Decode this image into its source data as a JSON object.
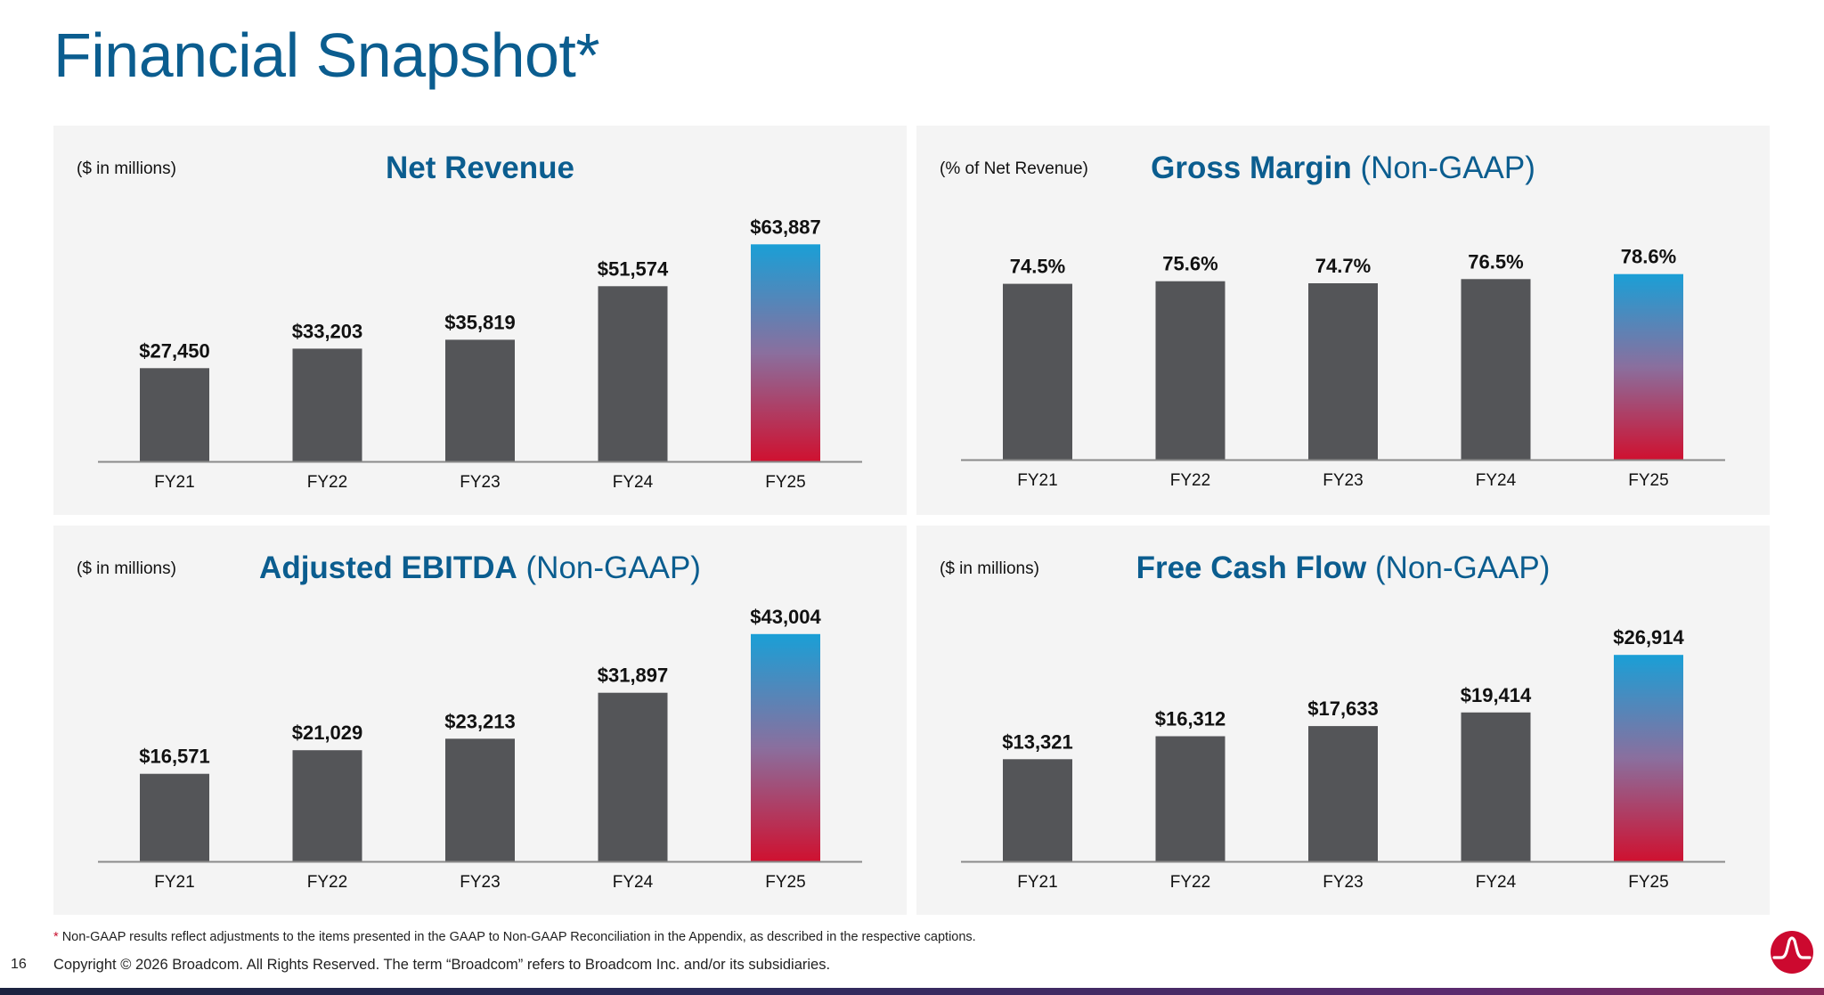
{
  "page": {
    "title": "Financial Snapshot*",
    "footnote_marker": "*",
    "footnote_text": "Non-GAAP results reflect adjustments to the items presented in the GAAP to Non-GAAP Reconciliation in the Appendix, as described in the respective captions.",
    "page_number": "16",
    "copyright": "Copyright © 2026 Broadcom. All Rights Reserved. The term “Broadcom” refers to Broadcom Inc. and/or its subsidiaries."
  },
  "colors": {
    "bar": "#545558",
    "highlight_top": "#1a9fd6",
    "highlight_mid": "#8a6f9e",
    "highlight_bottom": "#cf1130",
    "title": "#0b5d8f",
    "panel_bg": "#f4f4f4",
    "logo": "#cc092f"
  },
  "panels": [
    {
      "unit_note": "($ in millions)",
      "title_main": "Net Revenue",
      "title_sub": ""
    },
    {
      "unit_note": "(% of Net Revenue)",
      "title_main": "Gross Margin",
      "title_sub": "(Non-GAAP)"
    },
    {
      "unit_note": "($ in millions)",
      "title_main": "Adjusted EBITDA",
      "title_sub": "(Non-GAAP)"
    },
    {
      "unit_note": "($ in millions)",
      "title_main": "Free Cash Flow",
      "title_sub": "(Non-GAAP)"
    }
  ],
  "chart_data": [
    {
      "type": "bar",
      "title": "Net Revenue",
      "ylabel": "($ in millions)",
      "categories": [
        "FY21",
        "FY22",
        "FY23",
        "FY24",
        "FY25"
      ],
      "values": [
        27450,
        33203,
        35819,
        51574,
        63887
      ],
      "labels": [
        "$27,450",
        "$33,203",
        "$35,819",
        "$51,574",
        "$63,887"
      ],
      "ylim": [
        0,
        70000
      ],
      "highlight_index": 4,
      "grid": false,
      "legend": "none"
    },
    {
      "type": "bar",
      "title": "Gross Margin (Non-GAAP)",
      "ylabel": "(% of Net Revenue)",
      "categories": [
        "FY21",
        "FY22",
        "FY23",
        "FY24",
        "FY25"
      ],
      "values": [
        74.5,
        75.6,
        74.7,
        76.5,
        78.6
      ],
      "labels": [
        "74.5%",
        "75.6%",
        "74.7%",
        "76.5%",
        "78.6%"
      ],
      "ylim": [
        0,
        100
      ],
      "highlight_index": 4,
      "grid": false,
      "legend": "none"
    },
    {
      "type": "bar",
      "title": "Adjusted EBITDA (Non-GAAP)",
      "ylabel": "($ in millions)",
      "categories": [
        "FY21",
        "FY22",
        "FY23",
        "FY24",
        "FY25"
      ],
      "values": [
        16571,
        21029,
        23213,
        31897,
        43004
      ],
      "labels": [
        "$16,571",
        "$21,029",
        "$23,213",
        "$31,897",
        "$43,004"
      ],
      "ylim": [
        0,
        45000
      ],
      "highlight_index": 4,
      "grid": false,
      "legend": "none"
    },
    {
      "type": "bar",
      "title": "Free Cash Flow (Non-GAAP)",
      "ylabel": "($ in millions)",
      "categories": [
        "FY21",
        "FY22",
        "FY23",
        "FY24",
        "FY25"
      ],
      "values": [
        13321,
        16312,
        17633,
        19414,
        26914
      ],
      "labels": [
        "$13,321",
        "$16,312",
        "$17,633",
        "$19,414",
        "$26,914"
      ],
      "ylim": [
        0,
        31000
      ],
      "highlight_index": 4,
      "grid": false,
      "legend": "none"
    }
  ]
}
